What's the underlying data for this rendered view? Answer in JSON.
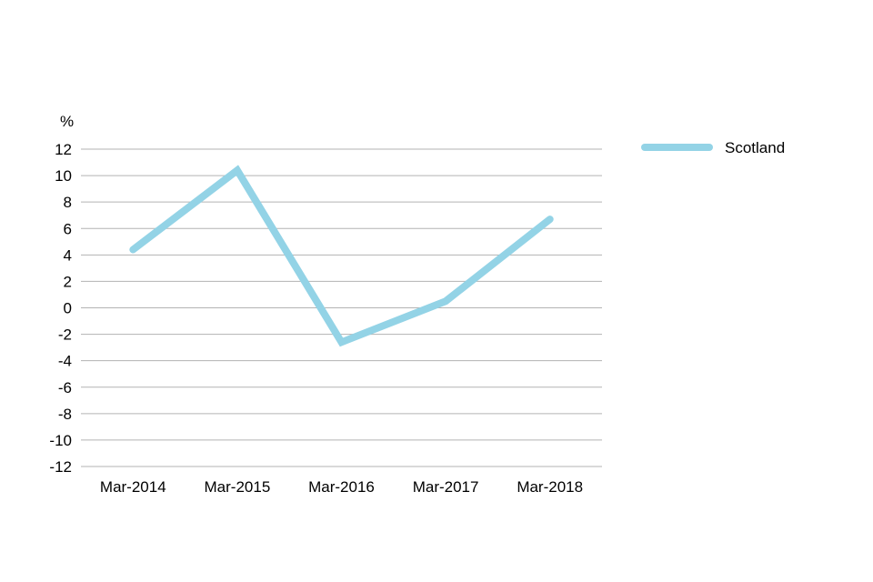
{
  "chart_data": {
    "type": "line",
    "categories": [
      "Mar-2014",
      "Mar-2015",
      "Mar-2016",
      "Mar-2017",
      "Mar-2018"
    ],
    "series": [
      {
        "name": "Scotland",
        "values": [
          4.4,
          10.4,
          -2.6,
          0.5,
          6.7
        ],
        "color": "#93d3e6"
      }
    ],
    "ylabel": "%",
    "ylim": [
      -12,
      12
    ],
    "yticks": [
      "12",
      "10",
      "8",
      "6",
      "4",
      "2",
      "0",
      "-2",
      "-4",
      "-6",
      "-8",
      "-10",
      "-12"
    ],
    "grid": true,
    "legend_position": "top-right"
  }
}
